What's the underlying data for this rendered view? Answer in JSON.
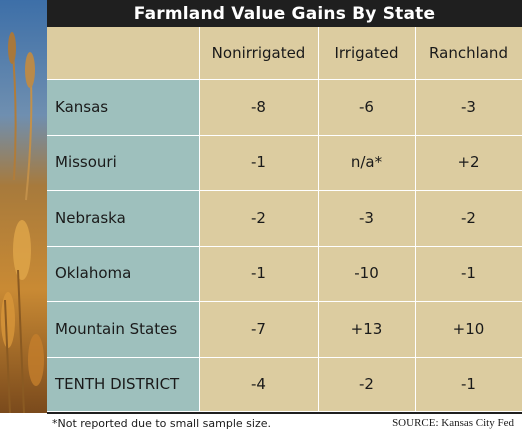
{
  "chart_data": {
    "type": "table",
    "title": "Farmland Value Gains By State",
    "columns": [
      "Nonirrigated",
      "Irrigated",
      "Ranchland"
    ],
    "rows": [
      {
        "label": "Kansas",
        "values": [
          "-8",
          "-6",
          "-3"
        ]
      },
      {
        "label": "Missouri",
        "values": [
          "-1",
          "n/a*",
          "+2"
        ]
      },
      {
        "label": "Nebraska",
        "values": [
          "-2",
          "-3",
          "-2"
        ]
      },
      {
        "label": "Oklahoma",
        "values": [
          "-1",
          "-10",
          "-1"
        ]
      },
      {
        "label": "Mountain States",
        "values": [
          "-7",
          "+13",
          "+10"
        ]
      },
      {
        "label": "TENTH DISTRICT",
        "values": [
          "-4",
          "-2",
          "-1"
        ]
      }
    ]
  },
  "footnote": "*Not reported due to small sample size.",
  "source": "SOURCE: Kansas City Fed",
  "colors": {
    "title_bar": "#1f1f1f",
    "label_column": "#9ec0bd",
    "value_cells": "#dccca0"
  },
  "decoration": "wheat-photo"
}
